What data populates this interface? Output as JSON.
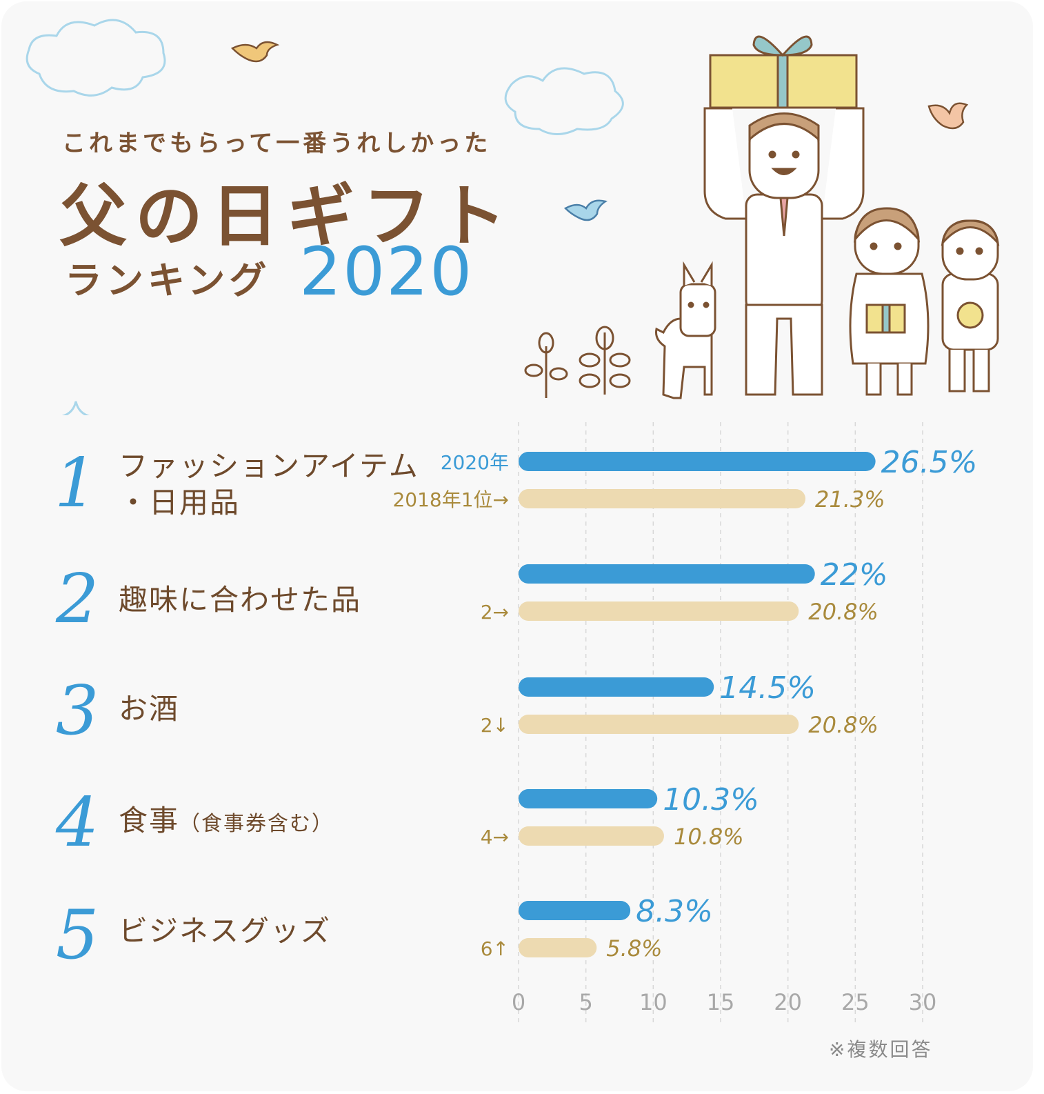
{
  "header": {
    "subtitle": "これまでもらって一番うれしかった",
    "title": "父の日ギフト",
    "ranking": "ランキング",
    "year": "2020"
  },
  "ranks": [
    {
      "number": "1",
      "label_line1": "ファッションアイテム",
      "label_line2": "・日用品"
    },
    {
      "number": "2",
      "label_line1": "趣味に合わせた品"
    },
    {
      "number": "3",
      "label_line1": "お酒"
    },
    {
      "number": "4",
      "label_line1": "食事",
      "label_small": "（食事券含む）"
    },
    {
      "number": "5",
      "label_line1": "ビジネスグッズ"
    }
  ],
  "footnote": "※複数回答",
  "colors": {
    "bar_2020": "#3b9bd6",
    "bar_2018": "#eddab1",
    "label_2020": "#3b9bd6",
    "label_2018": "#a98a3c",
    "text_brown": "#6e4a2c",
    "gridline": "#d8d8d8",
    "tick": "#a8a8a8"
  },
  "chart_data": {
    "type": "bar",
    "orientation": "horizontal",
    "categories": [
      "ファッションアイテム・日用品",
      "趣味に合わせた品",
      "お酒",
      "食事（食事券含む）",
      "ビジネスグッズ"
    ],
    "series": [
      {
        "name": "2020年",
        "values": [
          26.5,
          22,
          14.5,
          10.3,
          8.3
        ],
        "labels": [
          "26.5%",
          "22%",
          "14.5%",
          "10.3%",
          "8.3%"
        ]
      },
      {
        "name": "2018年",
        "values": [
          21.3,
          20.8,
          20.8,
          10.8,
          5.8
        ],
        "labels": [
          "21.3%",
          "20.8%",
          "20.8%",
          "10.8%",
          "5.8%"
        ]
      }
    ],
    "series_labels": [
      "2020年",
      ""
    ],
    "prev_rank_labels": [
      "2018年1位→",
      "2→",
      "2↓",
      "4→",
      "6↑"
    ],
    "xlim": [
      0,
      30
    ],
    "xticks": [
      "0",
      "5",
      "10",
      "15",
      "20",
      "25",
      "30"
    ],
    "grid": true
  }
}
